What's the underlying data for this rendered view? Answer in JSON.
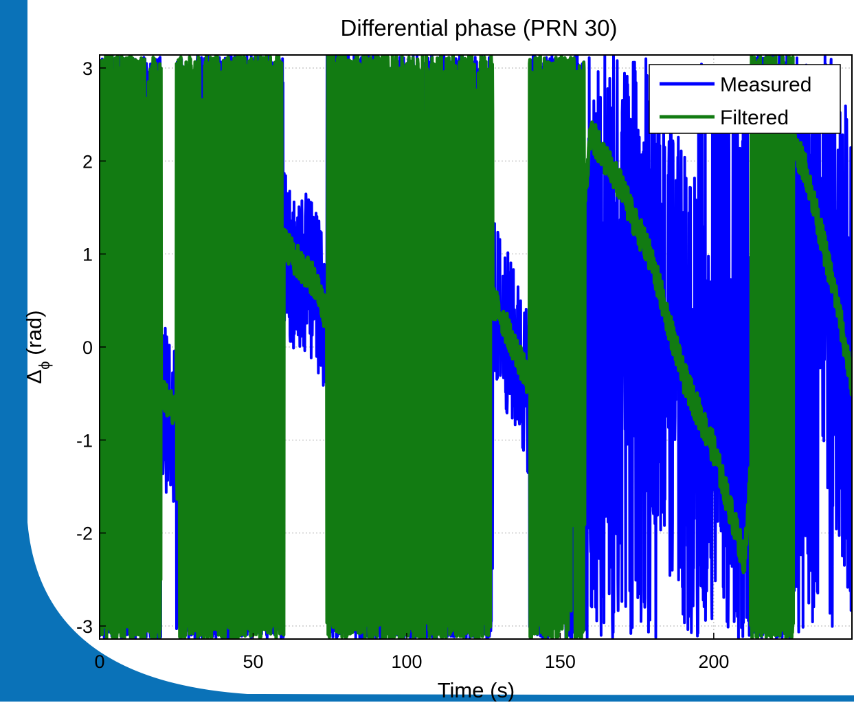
{
  "slide": {
    "accent_color": "#0a72b8"
  },
  "chart_data": {
    "type": "line",
    "title": "Differential phase (PRN 30)",
    "xlabel": "Time (s)",
    "ylabel_main": "Δ",
    "ylabel_sub": "ϕ",
    "ylabel_unit": "(rad)",
    "xlim": [
      0,
      245
    ],
    "ylim": [
      -3.14,
      3.14
    ],
    "xticks": [
      0,
      50,
      100,
      150,
      200
    ],
    "xtick_labels": [
      "0",
      "50",
      "100",
      "150",
      "200"
    ],
    "yticks": [
      3,
      2,
      1,
      0,
      -1,
      -2,
      -3
    ],
    "ytick_labels": [
      "3",
      "2",
      "1",
      "0",
      "-1",
      "-2",
      "-3"
    ],
    "grid": true,
    "legend_position": "top-right",
    "series": [
      {
        "name": "Measured",
        "color": "#0000ff",
        "description_points": [
          {
            "t": 0,
            "y": 1.4
          },
          {
            "t": 5,
            "y": 0.6
          },
          {
            "t": 10,
            "y": 0.4
          },
          {
            "t": 15,
            "y": -0.2
          },
          {
            "t": 20,
            "y": -0.6
          },
          {
            "t": 25,
            "y": -0.8
          },
          {
            "t": 30,
            "y": -1.0
          },
          {
            "t": 35,
            "y": -0.2
          },
          {
            "t": 40,
            "y": -1.2
          },
          {
            "t": 45,
            "y": 1.6
          },
          {
            "t": 50,
            "y": 1.4
          },
          {
            "t": 55,
            "y": 1.8
          },
          {
            "t": 60,
            "y": 1.0
          },
          {
            "t": 65,
            "y": 0.8
          },
          {
            "t": 70,
            "y": 0.7
          },
          {
            "t": 75,
            "y": 0.2
          },
          {
            "t": 80,
            "y": -0.9
          },
          {
            "t": 90,
            "y": -1.6
          },
          {
            "t": 100,
            "y": -2.2
          },
          {
            "t": 110,
            "y": 0.5
          },
          {
            "t": 120,
            "y": 0.9
          },
          {
            "t": 130,
            "y": 0.4
          },
          {
            "t": 140,
            "y": -0.5
          },
          {
            "t": 150,
            "y": -1.0
          },
          {
            "t": 160,
            "y": 2.3
          },
          {
            "t": 170,
            "y": 1.6
          },
          {
            "t": 180,
            "y": 0.8
          },
          {
            "t": 190,
            "y": -0.4
          },
          {
            "t": 200,
            "y": -1.2
          },
          {
            "t": 210,
            "y": -2.3
          },
          {
            "t": 220,
            "y": 2.6
          },
          {
            "t": 230,
            "y": 2.0
          },
          {
            "t": 240,
            "y": 0.6
          },
          {
            "t": 245,
            "y": -0.3
          }
        ]
      },
      {
        "name": "Filtered",
        "color": "#127b12",
        "description_points": [
          {
            "t": 0,
            "y": 1.3
          },
          {
            "t": 5,
            "y": 0.5
          },
          {
            "t": 10,
            "y": 0.3
          },
          {
            "t": 15,
            "y": -0.1
          },
          {
            "t": 20,
            "y": -0.5
          },
          {
            "t": 25,
            "y": -0.7
          },
          {
            "t": 30,
            "y": -0.9
          },
          {
            "t": 35,
            "y": -0.1
          },
          {
            "t": 40,
            "y": -1.1
          },
          {
            "t": 45,
            "y": 1.5
          },
          {
            "t": 50,
            "y": 1.3
          },
          {
            "t": 55,
            "y": 1.7
          },
          {
            "t": 60,
            "y": 1.1
          },
          {
            "t": 65,
            "y": 0.9
          },
          {
            "t": 70,
            "y": 0.7
          },
          {
            "t": 75,
            "y": 0.2
          },
          {
            "t": 80,
            "y": -0.8
          },
          {
            "t": 90,
            "y": -1.5
          },
          {
            "t": 100,
            "y": -2.0
          },
          {
            "t": 110,
            "y": 0.5
          },
          {
            "t": 120,
            "y": 0.8
          },
          {
            "t": 130,
            "y": 0.4
          },
          {
            "t": 140,
            "y": -0.4
          },
          {
            "t": 150,
            "y": -0.9
          },
          {
            "t": 160,
            "y": 2.3
          },
          {
            "t": 170,
            "y": 1.7
          },
          {
            "t": 180,
            "y": 0.9
          },
          {
            "t": 190,
            "y": -0.3
          },
          {
            "t": 200,
            "y": -1.1
          },
          {
            "t": 210,
            "y": -2.3
          },
          {
            "t": 220,
            "y": 2.6
          },
          {
            "t": 230,
            "y": 1.9
          },
          {
            "t": 240,
            "y": 0.5
          },
          {
            "t": 245,
            "y": -0.4
          }
        ]
      }
    ]
  }
}
